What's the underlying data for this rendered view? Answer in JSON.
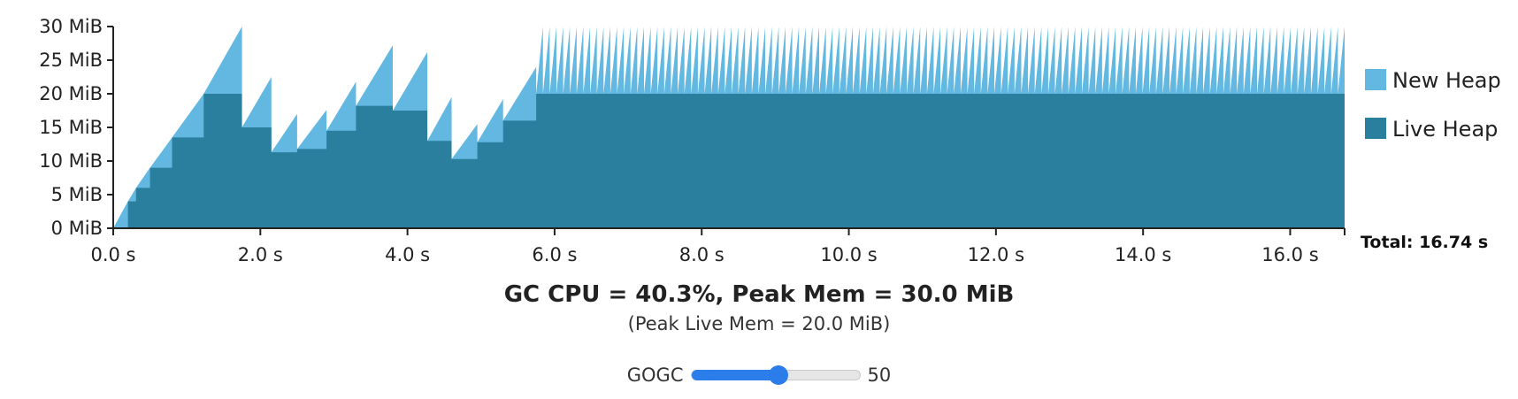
{
  "chart_data": {
    "type": "area",
    "ylim": [
      0,
      30
    ],
    "xlim": [
      0,
      16.74
    ],
    "y_ticks": [
      "0 MiB",
      "5 MiB",
      "10 MiB",
      "15 MiB",
      "20 MiB",
      "25 MiB",
      "30 MiB"
    ],
    "x_ticks": [
      "0.0 s",
      "2.0 s",
      "4.0 s",
      "6.0 s",
      "8.0 s",
      "10.0 s",
      "12.0 s",
      "14.0 s",
      "16.0 s"
    ],
    "legend": [
      "New Heap",
      "Live Heap"
    ],
    "legend_position": "right",
    "colors": {
      "new_heap": "#62b8e0",
      "live_heap": "#2a7f9e"
    },
    "series": [
      {
        "name": "New Heap",
        "description_points": "total heap sawtooth peaks"
      },
      {
        "name": "Live Heap",
        "description_points": "live heap step function"
      }
    ],
    "gc_cycles": [
      [
        0.0,
        0.2,
        0,
        4.0
      ],
      [
        0.2,
        0.31,
        4.0,
        6.0
      ],
      [
        0.31,
        0.5,
        6.0,
        9.0
      ],
      [
        0.5,
        0.8,
        9.0,
        13.5
      ],
      [
        0.8,
        1.23,
        13.5,
        20.0
      ],
      [
        1.23,
        1.75,
        20.0,
        30.0
      ],
      [
        1.75,
        2.15,
        15.0,
        22.5
      ],
      [
        2.15,
        2.5,
        11.3,
        17.0
      ],
      [
        2.5,
        2.9,
        11.8,
        17.6
      ],
      [
        2.9,
        3.3,
        14.5,
        21.8
      ],
      [
        3.3,
        3.8,
        18.2,
        27.2
      ],
      [
        3.8,
        4.27,
        17.5,
        26.2
      ],
      [
        4.27,
        4.6,
        13.0,
        19.5
      ],
      [
        4.6,
        4.95,
        10.3,
        15.5
      ],
      [
        4.95,
        5.3,
        12.8,
        19.2
      ],
      [
        5.3,
        5.75,
        16.0,
        24.0
      ]
    ],
    "steady_state": {
      "start": 5.75,
      "end": 16.74,
      "live": 20.0,
      "peak": 30.0,
      "cycles": 120
    },
    "total_label": "Total: 16.74 s"
  },
  "summary": {
    "headline": "GC CPU = 40.3%, Peak Mem = 30.0 MiB",
    "subline": "(Peak Live Mem = 20.0 MiB)"
  },
  "gogc": {
    "label": "GOGC",
    "value": "50",
    "fraction": 0.52
  }
}
